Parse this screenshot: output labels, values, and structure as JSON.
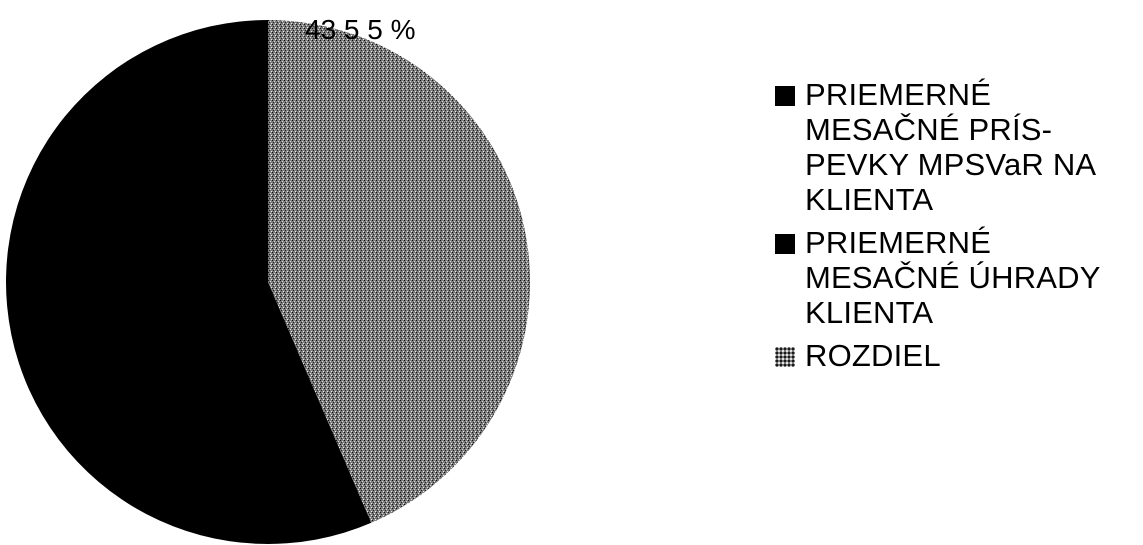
{
  "chart_data": {
    "type": "pie",
    "slices": [
      {
        "name": "PRIEMERNÉ MESAČNÉ PRÍS-PEVKY MPSVaR NA KLIENTA",
        "value": 56.45,
        "color": "#000000",
        "pattern": "solid"
      },
      {
        "name": "PRIEMERNÉ MESAČNÉ ÚHRADY KLIENTA",
        "value": 0,
        "color": "#000000",
        "pattern": "solid"
      },
      {
        "name": "ROZDIEL",
        "value": 43.55,
        "color": "#777777",
        "pattern": "speckle"
      }
    ],
    "data_labels": [
      "43 5 5 %"
    ],
    "legend_position": "right"
  },
  "legend": {
    "items": [
      {
        "lines": [
          "PRIEMERNÉ",
          "MESAČNÉ PRÍS-",
          "PEVKY MPSVaR NA",
          "KLIENTA"
        ]
      },
      {
        "lines": [
          "PRIEMERNÉ",
          "MESAČNÉ ÚHRADY",
          "KLIENTA"
        ]
      },
      {
        "lines": [
          "ROZDIEL"
        ]
      }
    ]
  }
}
